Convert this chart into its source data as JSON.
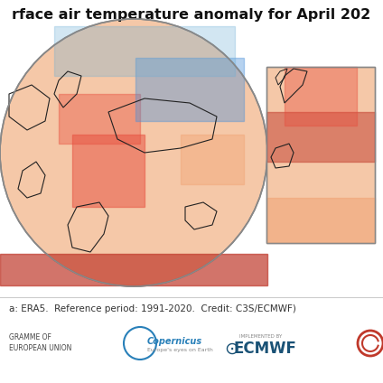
{
  "title": "rface air temperature anomaly for April 202",
  "subtitle": "a: ERA5.  Reference period: 1991-2020.  Credit: C3S/ECMWF)",
  "bg_color": "#ffffff",
  "map_bg": "#f0e8d8",
  "globe_border_color": "#888888",
  "text_color": "#000000",
  "footer_text1": "GRAMME OF\nEUROPEAN UNION",
  "footer_copernicus": "Copernicus\nEurope's eyes on Earth",
  "footer_ecmwf": "ECMWF",
  "footer_implemented": "IMPLEMENTED BY",
  "colormap_warm": [
    "#ffffff",
    "#fddbc7",
    "#f4a582",
    "#d6604d",
    "#b2182b",
    "#67001f"
  ],
  "colormap_cool": [
    "#ffffff",
    "#d1e5f0",
    "#92c5de",
    "#4393c3",
    "#2166ac",
    "#053061"
  ]
}
